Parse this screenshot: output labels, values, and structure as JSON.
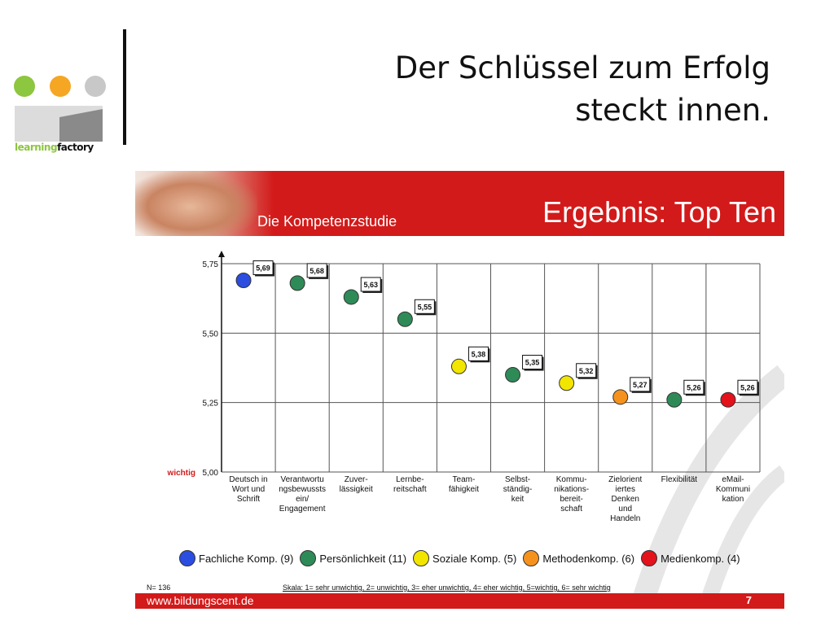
{
  "header": {
    "title_line1": "Der Schlüssel zum Erfolg",
    "title_line2": "steckt innen."
  },
  "logo": {
    "text_learning": "learning",
    "text_factory": "factory",
    "dot_colors": [
      "#8dc63f",
      "#f5a623",
      "#c8c8c8"
    ]
  },
  "panel": {
    "banner_subtitle": "Die Kompetenzstudie",
    "banner_title": "Ergebnis: Top Ten",
    "wichtig_label": "wichtig",
    "n_label": "N= 136",
    "scale_label": "Skala: 1= sehr unwichtig, 2= unwichtig, 3= eher unwichtig, 4= eher wichtig, 5=wichtig, 6= sehr wichtig",
    "footer_url": "www.bildungscent.de",
    "footer_page": "7",
    "legend": [
      {
        "label": "Fachliche Komp. (9)",
        "color": "#2b4de0"
      },
      {
        "label": "Persönlichkeit (11)",
        "color": "#2e8b57"
      },
      {
        "label": "Soziale Komp. (5)",
        "color": "#f2e600"
      },
      {
        "label": "Methodenkomp. (6)",
        "color": "#f5921e"
      },
      {
        "label": "Medienkomp. (4)",
        "color": "#e3121b"
      }
    ],
    "colors": {
      "red": "#d21a1a"
    }
  },
  "chart_data": {
    "type": "scatter",
    "ylim": [
      5.0,
      5.75
    ],
    "yticks": [
      "5,00",
      "5,25",
      "5,50",
      "5,75"
    ],
    "categories": [
      [
        "Deutsch in",
        "Wort und",
        "Schrift"
      ],
      [
        "Verantwortu",
        "ngsbewussts",
        "ein/",
        "Engagement"
      ],
      [
        "Zuver-",
        "lässigkeit"
      ],
      [
        "Lernbe-",
        "reitschaft"
      ],
      [
        "Team-",
        "fähigkeit"
      ],
      [
        "Selbst-",
        "ständig-",
        "keit"
      ],
      [
        "Kommu-",
        "nikations-",
        "bereit-",
        "schaft"
      ],
      [
        "Zielorient",
        "iertes",
        "Denken",
        "und",
        "Handeln"
      ],
      [
        "Flexibilität"
      ],
      [
        "eMail-",
        "Kommuni",
        "kation"
      ]
    ],
    "values": [
      5.69,
      5.68,
      5.63,
      5.55,
      5.38,
      5.35,
      5.32,
      5.27,
      5.26,
      5.26
    ],
    "value_labels": [
      "5,69",
      "5,68",
      "5,63",
      "5,55",
      "5,38",
      "5,35",
      "5,32",
      "5,27",
      "5,26",
      "5,26"
    ],
    "point_colors": [
      "#2b4de0",
      "#2e8b57",
      "#2e8b57",
      "#2e8b57",
      "#f2e600",
      "#2e8b57",
      "#f2e600",
      "#f5921e",
      "#2e8b57",
      "#e3121b"
    ]
  }
}
